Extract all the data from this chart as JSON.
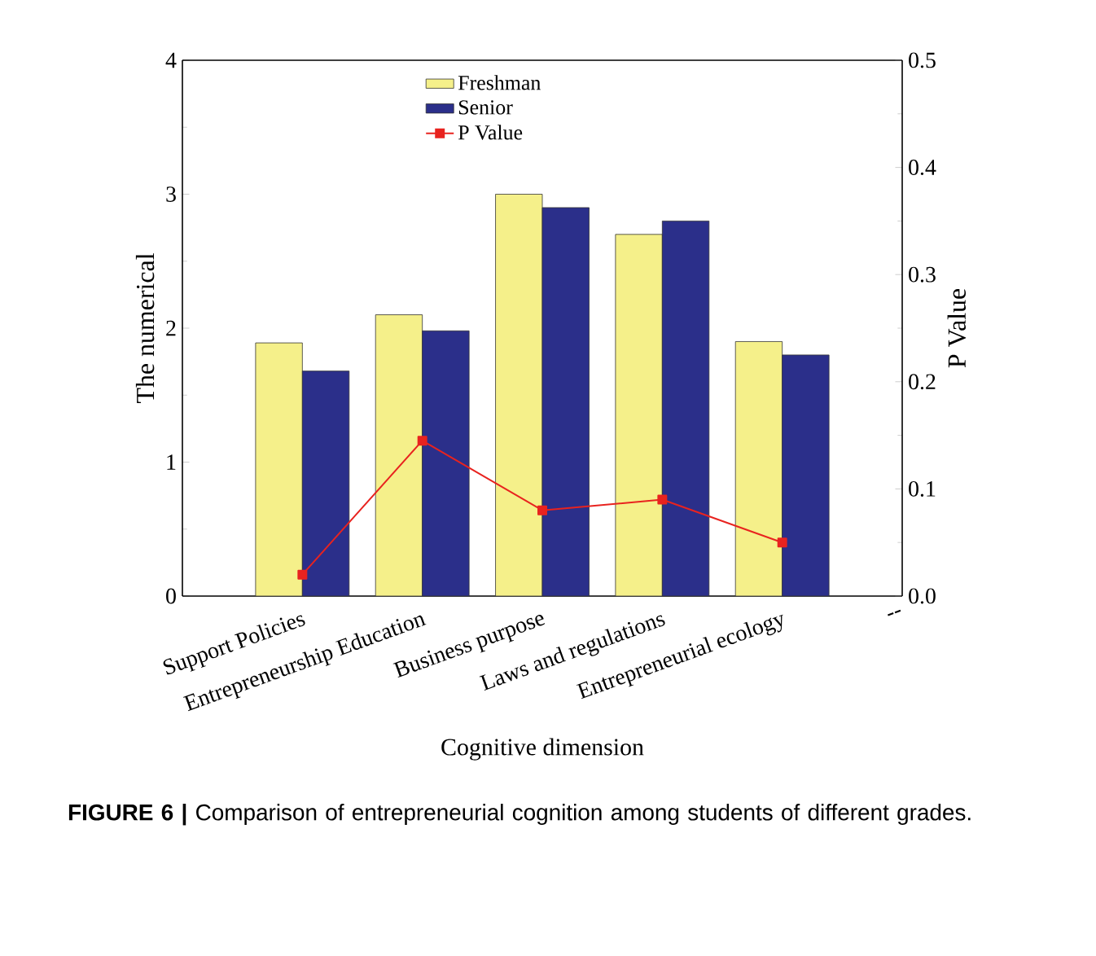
{
  "chart_data": {
    "type": "bar",
    "xlabel": "Cognitive dimension",
    "ylabel": "The numerical",
    "y2label": "P Value",
    "categories": [
      "Support Policies",
      "Entrepreneurship Education",
      "Business purpose",
      "Laws and regulations",
      "Entrepreneurial ecology",
      "--"
    ],
    "series": [
      {
        "name": "Freshman",
        "color": "#f5f08a",
        "values": [
          1.89,
          2.1,
          3.0,
          2.7,
          1.9,
          null
        ]
      },
      {
        "name": "Senior",
        "color": "#2b2f8a",
        "values": [
          1.68,
          1.98,
          2.9,
          2.8,
          1.8,
          null
        ]
      },
      {
        "name": "P Value",
        "type": "line",
        "axis": "y2",
        "color": "#e8231f",
        "marker": "square",
        "values": [
          0.02,
          0.145,
          0.08,
          0.09,
          0.05,
          null
        ]
      }
    ],
    "ylim": [
      0,
      4
    ],
    "yticks": [
      0,
      1,
      2,
      3,
      4
    ],
    "y2lim": [
      0,
      0.5
    ],
    "y2ticks": [
      {
        "value": 0,
        "label": "0.0"
      },
      0.1,
      0.2,
      0.3,
      0.4,
      0.5
    ],
    "legend": "top",
    "grid": false,
    "annotations": [
      "**FIGURE 6 |** Comparison of entrepreneurial cognition among students of different grades."
    ]
  }
}
